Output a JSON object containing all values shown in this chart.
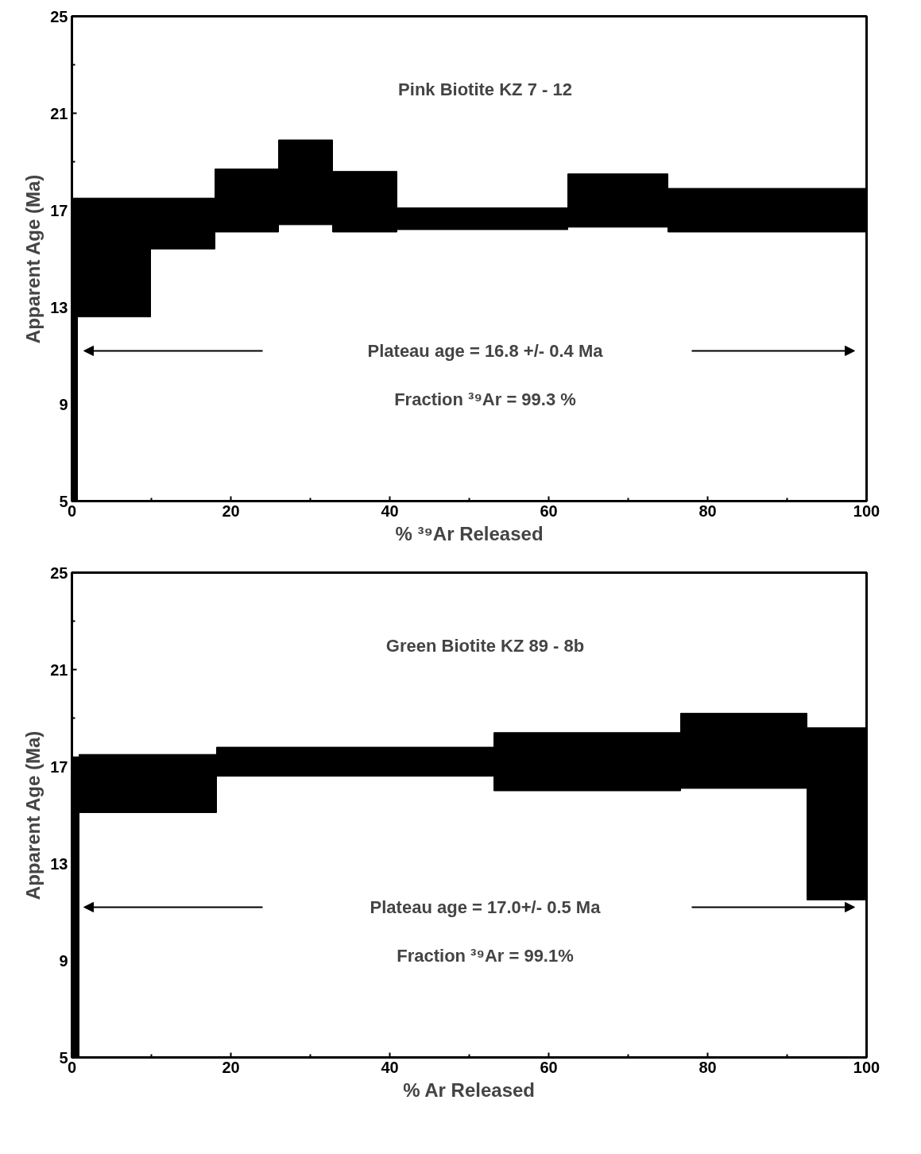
{
  "chart_data": [
    {
      "type": "bar",
      "title": "Pink Biotite KZ 7 - 12",
      "xlabel": "% ³⁹Ar Released",
      "ylabel": "Apparent Age (Ma)",
      "x": [
        0.35,
        5.3,
        13.95,
        22,
        29.4,
        36.85,
        51.65,
        68.7,
        87.5
      ],
      "base": [
        5,
        12.6,
        15.4,
        16.1,
        16.4,
        16.1,
        16.2,
        16.3,
        16.1
      ],
      "values": [
        12.5,
        4.9,
        2.1,
        2.6,
        3.5,
        2.5,
        0.9,
        2.2,
        1.8
      ],
      "color": "#000000",
      "annotations": [
        "Plateau age = 16.8 +/- 0.4 Ma",
        "Fraction ³⁹Ar = 99.3 %"
      ],
      "xlim": [
        0,
        100
      ],
      "ylim": [
        5,
        25
      ],
      "xticks": [
        0,
        {
          "value": 10,
          "label": null
        },
        20,
        {
          "value": 30,
          "label": null
        },
        40,
        {
          "value": 50,
          "label": null
        },
        60,
        {
          "value": 70,
          "label": null
        },
        80,
        {
          "value": 90,
          "label": null
        },
        100
      ],
      "yticks": [
        5,
        {
          "value": 7,
          "label": null
        },
        9,
        {
          "value": 11,
          "label": null
        },
        13,
        {
          "value": 15,
          "label": null
        },
        17,
        {
          "value": 19,
          "label": null
        },
        21,
        {
          "value": 23,
          "label": null
        },
        25
      ]
    },
    {
      "type": "bar",
      "title": "Green Biotite KZ 89 - 8b",
      "xlabel": "% Ar Released",
      "ylabel": "Apparent Age (Ma)",
      "x": [
        0.45,
        9.55,
        35.65,
        64.85,
        84.55,
        96.25
      ],
      "base": [
        5,
        15.1,
        16.6,
        16.0,
        16.1,
        11.5
      ],
      "values": [
        12.4,
        2.4,
        1.2,
        2.4,
        3.1,
        7.1
      ],
      "color": "#000000",
      "annotations": [
        "Plateau age = 17.0+/- 0.5 Ma",
        "Fraction ³⁹Ar = 99.1%"
      ],
      "xlim": [
        0,
        100
      ],
      "ylim": [
        5,
        25
      ],
      "xticks": [
        0,
        {
          "value": 10,
          "label": null
        },
        20,
        {
          "value": 30,
          "label": null
        },
        40,
        {
          "value": 50,
          "label": null
        },
        60,
        {
          "value": 70,
          "label": null
        },
        80,
        {
          "value": 90,
          "label": null
        },
        100
      ],
      "yticks": [
        5,
        {
          "value": 7,
          "label": null
        },
        9,
        {
          "value": 11,
          "label": null
        },
        13,
        {
          "value": 15,
          "label": null
        },
        17,
        {
          "value": 19,
          "label": null
        },
        21,
        {
          "value": 23,
          "label": null
        },
        25
      ]
    }
  ]
}
